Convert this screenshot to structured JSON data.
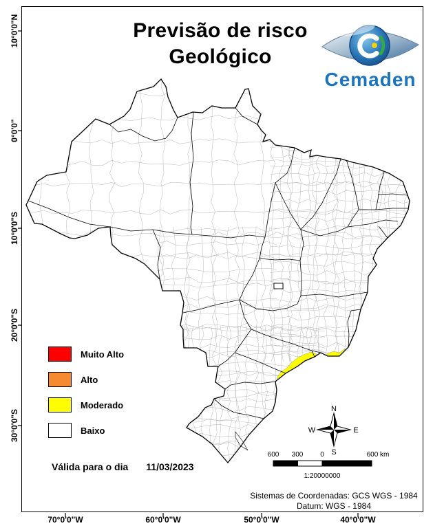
{
  "title": {
    "line1": "Previsão de risco",
    "line2": "Geológico"
  },
  "logo": {
    "text": "Cemaden"
  },
  "legend": {
    "items": [
      {
        "label": "Muito Alto",
        "color": "#fe0000"
      },
      {
        "label": "Alto",
        "color": "#f68a33"
      },
      {
        "label": "Moderado",
        "color": "#fffe00"
      },
      {
        "label": "Baixo",
        "color": "#ffffff"
      }
    ]
  },
  "validity": {
    "label": "Válida para o dia",
    "date": "11/03/2023"
  },
  "axes": {
    "lat": [
      "10°0'0\"N",
      "0°0'0\"",
      "10°0'0\"S",
      "20°0'0\"S",
      "30°0'0\"S"
    ],
    "lon": [
      "70°0'0\"W",
      "60°0'0\"W",
      "50°0'0\"W",
      "40°0'0\"W"
    ]
  },
  "compass": {
    "n": "N",
    "e": "E",
    "s": "S",
    "w": "W"
  },
  "scalebar": {
    "labels": [
      "600",
      "300",
      "0",
      "600 km"
    ],
    "ratio": "1:20000000"
  },
  "footer": {
    "line1": "Sistemas de Coordenadas: GCS WGS - 1984",
    "line2": "Datum: WGS - 1984"
  }
}
